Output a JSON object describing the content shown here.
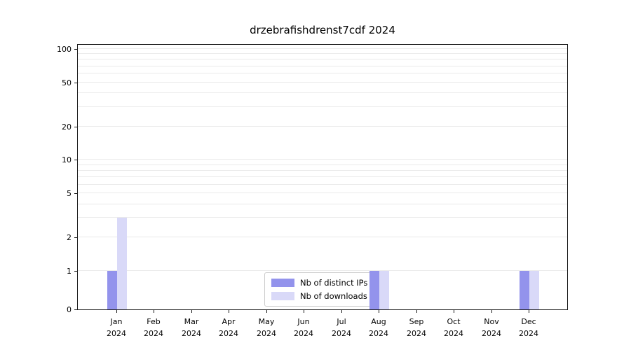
{
  "title": "drzebrafishdrenst7cdf 2024",
  "chart_data": {
    "type": "bar",
    "title": "drzebrafishdrenst7cdf 2024",
    "categories": [
      "Jan 2024",
      "Feb 2024",
      "Mar 2024",
      "Apr 2024",
      "May 2024",
      "Jun 2024",
      "Jul 2024",
      "Aug 2024",
      "Sep 2024",
      "Oct 2024",
      "Nov 2024",
      "Dec 2024"
    ],
    "series": [
      {
        "name": "Nb of distinct IPs",
        "color": "#9393ec",
        "values": [
          1,
          0,
          0,
          0,
          0,
          0,
          0,
          1,
          0,
          0,
          0,
          1
        ]
      },
      {
        "name": "Nb of downloads",
        "color": "#d9d9f8",
        "values": [
          3,
          0,
          0,
          0,
          0,
          0,
          0,
          1,
          0,
          0,
          0,
          1
        ]
      }
    ],
    "xlabel": "",
    "ylabel": "",
    "yscale": "symlog",
    "yticks": [
      0,
      1,
      2,
      5,
      10,
      20,
      50,
      100
    ],
    "ylim": [
      0,
      112
    ],
    "grid": "horizontal-log-gridlines",
    "legend_position": "bottom-center-inside"
  }
}
